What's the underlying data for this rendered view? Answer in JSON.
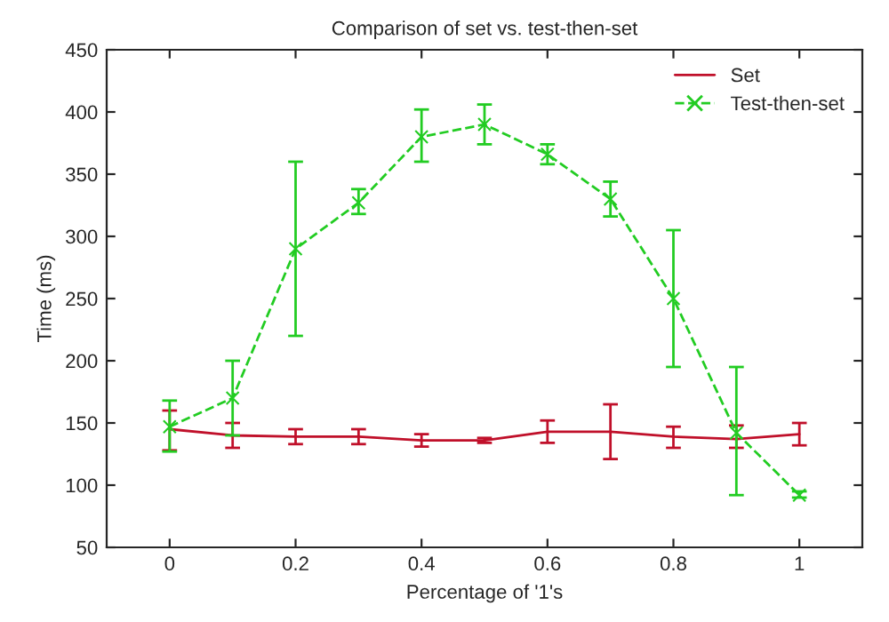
{
  "chart_data": {
    "type": "line",
    "title": "Comparison of set vs. test-then-set",
    "xlabel": "Percentage of '1's",
    "ylabel": "Time (ms)",
    "x": [
      0,
      0.1,
      0.2,
      0.3,
      0.4,
      0.5,
      0.6,
      0.7,
      0.8,
      0.9,
      1
    ],
    "series": [
      {
        "name": "Set",
        "color": "#c0102a",
        "values": [
          145,
          140,
          139,
          139,
          136,
          136,
          143,
          143,
          139,
          137,
          141
        ],
        "errors": [
          [
            128,
            160
          ],
          [
            130,
            150
          ],
          [
            133,
            145
          ],
          [
            133,
            145
          ],
          [
            131,
            141
          ],
          [
            134,
            138
          ],
          [
            134,
            152
          ],
          [
            121,
            165
          ],
          [
            130,
            147
          ],
          [
            130,
            148
          ],
          [
            132,
            150
          ]
        ],
        "marker": "none",
        "line_style": "solid"
      },
      {
        "name": "Test-then-set",
        "color": "#22cc22",
        "values": [
          147,
          170,
          290,
          327,
          380,
          390,
          366,
          330,
          250,
          142,
          92
        ],
        "errors": [
          [
            127,
            168
          ],
          [
            140,
            200
          ],
          [
            220,
            360
          ],
          [
            318,
            338
          ],
          [
            360,
            402
          ],
          [
            374,
            406
          ],
          [
            358,
            374
          ],
          [
            316,
            344
          ],
          [
            195,
            305
          ],
          [
            92,
            195
          ],
          [
            90,
            95
          ]
        ],
        "marker": "cross",
        "line_style": "dashed"
      }
    ],
    "xlim": [
      -0.1,
      1.1
    ],
    "xticks": [
      0,
      0.2,
      0.4,
      0.6,
      0.8,
      1
    ],
    "ylim": [
      50,
      450
    ],
    "yticks": [
      50,
      100,
      150,
      200,
      250,
      300,
      350,
      400,
      450
    ],
    "grid": false,
    "legend": "top right"
  }
}
